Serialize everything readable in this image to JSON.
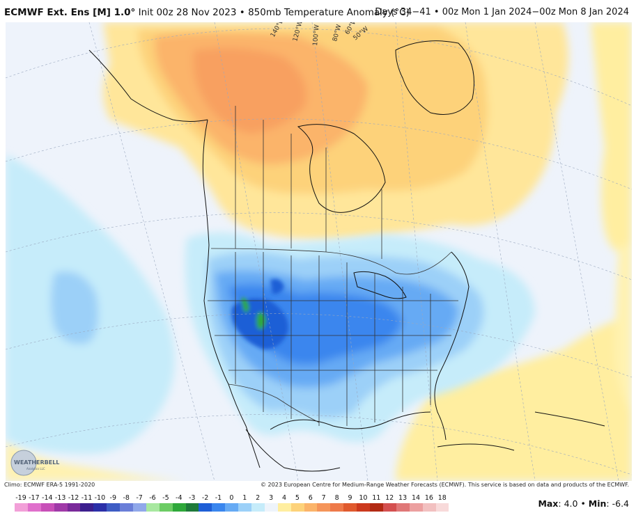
{
  "header": {
    "model": "ECMWF Ext. Ens [M] 1.0°",
    "init": "Init 00z 28 Nov 2023",
    "sep": "•",
    "variable": "850mb Temperature Anomaly (°C)",
    "valid": "Days 34−41 • 00z Mon 1 Jan 2024−00z Mon 8 Jan 2024"
  },
  "map": {
    "meridian_labels": [
      "140°W",
      "120°W",
      "100°W",
      "80°W",
      "60°W",
      "50°W"
    ]
  },
  "logo": {
    "text": "WEATHERBELL",
    "sub": "Analytics LLC"
  },
  "footer": {
    "climo": "Climo: ECMWF ERA-5 1991-2020",
    "copyright": "© 2023 European Centre for Medium-Range Weather Forecasts (ECMWF). This service is based on data and products of the ECMWF."
  },
  "colorbar": {
    "labels": [
      "-19",
      "-17",
      "-14",
      "-13",
      "-12",
      "-11",
      "-10",
      "-9",
      "-8",
      "-7",
      "-6",
      "-5",
      "-4",
      "-3",
      "-2",
      "-1",
      "0",
      "1",
      "2",
      "3",
      "4",
      "5",
      "6",
      "7",
      "8",
      "9",
      "10",
      "11",
      "12",
      "13",
      "14",
      "16",
      "18"
    ],
    "colors": [
      "#f2a0d8",
      "#e070cc",
      "#c850b8",
      "#a03aa8",
      "#7a2a9a",
      "#3c1f8e",
      "#2b2fa8",
      "#3e5cc4",
      "#6a7ed8",
      "#90a8ea",
      "#a8e8a0",
      "#6ccc64",
      "#2ea83a",
      "#1e7a3a",
      "#1e5ed6",
      "#3a86ee",
      "#66aaf4",
      "#9cd0f8",
      "#c6ecfa",
      "#eef4fb",
      "#ffeea0",
      "#fdd27a",
      "#fbb46a",
      "#f5955a",
      "#ee7a4a",
      "#e05a2e",
      "#cc3a1e",
      "#b22a14",
      "#d45050",
      "#e07878",
      "#eca0a0",
      "#f2c0c0",
      "#f8dada"
    ]
  },
  "stats": {
    "max_label": "Max",
    "max": "4.0",
    "sep": "•",
    "min_label": "Min",
    "min": "-6.4"
  }
}
